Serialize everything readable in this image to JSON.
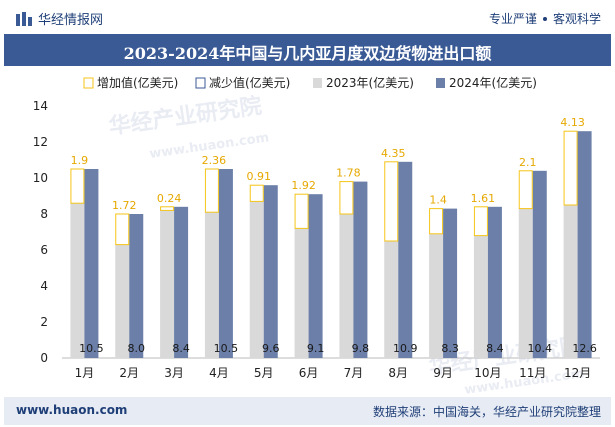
{
  "header": {
    "brand": "华经情报网",
    "logo_icon": "bar-logo-icon",
    "tag_left": "专业严谨",
    "tag_right": "客观科学"
  },
  "footer": {
    "url": "www.huaon.com",
    "source": "数据来源：中国海关，华经产业研究院整理"
  },
  "watermark": {
    "cn": "华经产业研究院",
    "en": "www.huaon.com"
  },
  "colors": {
    "increase": "#f5c518",
    "decrease": "#3a5a95",
    "y2023": "#d9d9d9",
    "y2024": "#6b7fa8",
    "titlebar": "#3a5a95"
  },
  "chart_data": {
    "type": "bar",
    "title": "2023-2024年中国与几内亚月度双边货物进出口额",
    "xlabel": "",
    "ylabel": "",
    "ylim": [
      0,
      14
    ],
    "yticks": [
      0,
      2,
      4,
      6,
      8,
      10,
      12,
      14
    ],
    "grid": false,
    "legend_position": "top-left",
    "categories": [
      "1月",
      "2月",
      "3月",
      "4月",
      "5月",
      "6月",
      "7月",
      "8月",
      "9月",
      "10月",
      "11月",
      "12月"
    ],
    "series": [
      {
        "name": "2023年(亿美元)",
        "values": [
          8.6,
          6.3,
          8.2,
          8.1,
          8.7,
          7.2,
          8.0,
          6.5,
          6.9,
          6.8,
          8.3,
          8.5
        ]
      },
      {
        "name": "2024年(亿美元)",
        "values": [
          10.5,
          8.0,
          8.4,
          10.5,
          9.6,
          9.1,
          9.8,
          10.9,
          8.3,
          8.4,
          10.4,
          12.6
        ]
      }
    ],
    "change_series": [
      {
        "name": "增加值(亿美元)",
        "sign": "increase"
      },
      {
        "name": "减少值(亿美元)",
        "sign": "decrease"
      }
    ],
    "change_labels": [
      "1.9",
      "1.72",
      "0.24",
      "2.36",
      "0.91",
      "1.92",
      "1.78",
      "4.35",
      "1.4",
      "1.61",
      "2.1",
      "4.13"
    ],
    "value_labels": [
      "10.5",
      "8.0",
      "8.4",
      "10.5",
      "9.6",
      "9.1",
      "9.8",
      "10.9",
      "8.3",
      "8.4",
      "10.4",
      "12.6"
    ]
  }
}
